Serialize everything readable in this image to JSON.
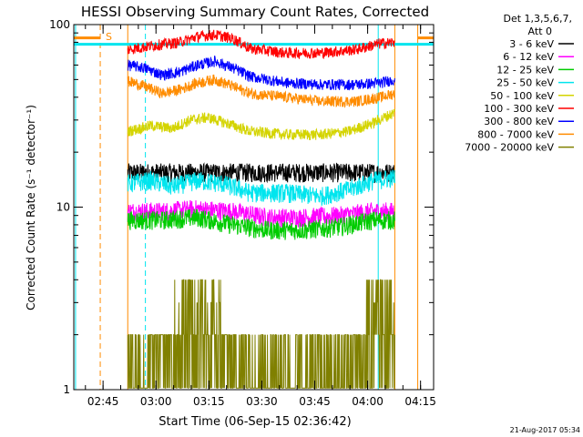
{
  "chart_data": {
    "type": "line",
    "title": "HESSI Observing Summary Count Rates, Corrected",
    "xlabel": "Start Time (06-Sep-15 02:36:42)",
    "ylabel": "Corrected Count Rate (s⁻¹ detector⁻¹)",
    "yscale": "log",
    "ylim": [
      1,
      100
    ],
    "xlim_minutes_after_start": [
      0,
      102
    ],
    "x_tick_labels": [
      "02:45",
      "03:00",
      "03:15",
      "03:30",
      "03:45",
      "04:00",
      "04:15"
    ],
    "x_tick_minutes": [
      8.3,
      23.3,
      38.3,
      53.3,
      68.3,
      83.3,
      98.3
    ],
    "y_tick_labels": [
      "1",
      "10",
      "100"
    ],
    "y_tick_values": [
      1,
      10,
      100
    ],
    "legend_header": [
      "Det 1,3,5,6,7,",
      "Att 0"
    ],
    "legend_position": "right",
    "flag_label": "S",
    "footer_date": "21-Aug-2017 05:34",
    "data_start_minute": 15.3,
    "data_end_minute": 91,
    "vertical_lines": [
      {
        "minute": 0.5,
        "color": "#00e5ee",
        "style": "solid"
      },
      {
        "minute": 7.5,
        "color": "#ff8c00",
        "style": "dashed"
      },
      {
        "minute": 15.3,
        "color": "#ff8c00",
        "style": "solid"
      },
      {
        "minute": 20.3,
        "color": "#00e5ee",
        "style": "dashed"
      },
      {
        "minute": 86.3,
        "color": "#00e5ee",
        "style": "solid"
      },
      {
        "minute": 91.0,
        "color": "#ff8c00",
        "style": "solid"
      },
      {
        "minute": 97.5,
        "color": "#ff8c00",
        "style": "solid"
      },
      {
        "minute": 103.5,
        "color": "#00e5ee",
        "style": "dashed"
      }
    ],
    "cyan_band_y": 78,
    "orange_flag_segments": [
      [
        0,
        7.5
      ],
      [
        97.5,
        102
      ]
    ],
    "series": [
      {
        "name": "3 - 6 keV",
        "color": "#000000",
        "x": [
          15.3,
          25,
          35,
          45,
          55,
          65,
          75,
          85,
          91
        ],
        "y": [
          15.5,
          15.5,
          15.5,
          15.5,
          15.5,
          15.5,
          15.5,
          15.5,
          15.5
        ]
      },
      {
        "name": "6 - 12 keV",
        "color": "#ff00ff",
        "x": [
          15.3,
          25,
          35,
          45,
          55,
          65,
          75,
          85,
          91
        ],
        "y": [
          9.5,
          9.5,
          9.8,
          9.5,
          8.8,
          8.8,
          9.0,
          9.5,
          9.5
        ]
      },
      {
        "name": "12 - 25 keV",
        "color": "#00cc00",
        "x": [
          15.3,
          25,
          35,
          45,
          55,
          65,
          75,
          85,
          91
        ],
        "y": [
          8.5,
          8.5,
          8.8,
          8.0,
          7.5,
          7.5,
          7.8,
          8.5,
          8.5
        ]
      },
      {
        "name": "25 - 50 keV",
        "color": "#00e5ee",
        "x": [
          15.3,
          22,
          28,
          35,
          42,
          50,
          60,
          70,
          78,
          85,
          91
        ],
        "y": [
          13.5,
          14.0,
          13.0,
          14.0,
          13.5,
          12.0,
          12.0,
          11.5,
          12.5,
          14.0,
          14.5
        ]
      },
      {
        "name": "50 - 100 keV",
        "color": "#d4d400",
        "x": [
          15.3,
          22,
          28,
          33,
          38,
          43,
          50,
          60,
          70,
          78,
          85,
          91
        ],
        "y": [
          26,
          28,
          27,
          30,
          31,
          29,
          26,
          25,
          25,
          26,
          29,
          33
        ]
      },
      {
        "name": "100 - 300 keV",
        "color": "#ff0000",
        "x": [
          15.3,
          25,
          30,
          35,
          40,
          45,
          50,
          60,
          70,
          80,
          87,
          91
        ],
        "y": [
          73,
          78,
          80,
          86,
          88,
          84,
          74,
          70,
          70,
          73,
          79,
          80
        ]
      },
      {
        "name": "300 - 800 keV",
        "color": "#0000ff",
        "x": [
          15.3,
          20,
          25,
          30,
          35,
          40,
          45,
          50,
          60,
          70,
          80,
          87,
          91
        ],
        "y": [
          60,
          58,
          53,
          55,
          60,
          63,
          58,
          52,
          48,
          47,
          47,
          48,
          50
        ]
      },
      {
        "name": "800 - 7000 keV",
        "color": "#ff8c00",
        "x": [
          15.3,
          20,
          25,
          30,
          35,
          40,
          45,
          50,
          60,
          70,
          80,
          87,
          91
        ],
        "y": [
          49,
          46,
          42,
          44,
          48,
          50,
          46,
          42,
          40,
          38,
          38,
          40,
          42
        ]
      },
      {
        "name": "7000 - 20000 keV",
        "color": "#808000",
        "x": [
          15.3,
          20,
          25,
          32,
          38,
          42,
          45,
          50,
          60,
          70,
          75,
          80,
          85,
          91
        ],
        "y": [
          1.5,
          1.6,
          2.0,
          3.0,
          3.0,
          2.5,
          1.8,
          1.6,
          1.5,
          1.5,
          1.6,
          2.2,
          2.8,
          2.8
        ]
      }
    ]
  }
}
